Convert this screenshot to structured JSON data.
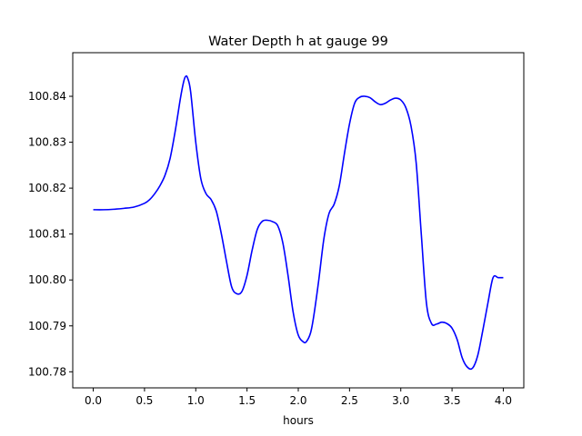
{
  "chart_data": {
    "type": "line",
    "title": "Water Depth h at gauge 99",
    "xlabel": "hours",
    "ylabel": "",
    "xlim": [
      -0.2,
      4.2
    ],
    "ylim": [
      100.7765,
      100.8495
    ],
    "xticks": [
      0.0,
      0.5,
      1.0,
      1.5,
      2.0,
      2.5,
      3.0,
      3.5,
      4.0
    ],
    "xtick_labels": [
      "0.0",
      "0.5",
      "1.0",
      "1.5",
      "2.0",
      "2.5",
      "3.0",
      "3.5",
      "4.0"
    ],
    "yticks": [
      100.78,
      100.79,
      100.8,
      100.81,
      100.82,
      100.83,
      100.84
    ],
    "ytick_labels": [
      "100.78",
      "100.79",
      "100.80",
      "100.81",
      "100.82",
      "100.83",
      "100.84"
    ],
    "grid": false,
    "colors": {
      "line": "#0000ff",
      "axes": "#000000",
      "background": "#ffffff"
    },
    "series": [
      {
        "x": [
          0.0,
          0.1,
          0.2,
          0.3,
          0.4,
          0.5,
          0.55,
          0.6,
          0.65,
          0.7,
          0.75,
          0.8,
          0.85,
          0.88,
          0.9,
          0.92,
          0.95,
          1.0,
          1.05,
          1.1,
          1.15,
          1.2,
          1.25,
          1.3,
          1.35,
          1.4,
          1.45,
          1.5,
          1.55,
          1.6,
          1.65,
          1.7,
          1.75,
          1.8,
          1.85,
          1.9,
          1.95,
          2.0,
          2.05,
          2.08,
          2.12,
          2.15,
          2.2,
          2.25,
          2.3,
          2.35,
          2.4,
          2.45,
          2.5,
          2.55,
          2.6,
          2.65,
          2.7,
          2.75,
          2.8,
          2.85,
          2.9,
          2.95,
          3.0,
          3.05,
          3.1,
          3.15,
          3.2,
          3.25,
          3.3,
          3.35,
          3.4,
          3.45,
          3.5,
          3.55,
          3.6,
          3.65,
          3.7,
          3.75,
          3.8,
          3.85,
          3.9,
          3.95,
          4.0
        ],
        "values": [
          100.8153,
          100.8153,
          100.8154,
          100.8156,
          100.8159,
          100.8167,
          100.8175,
          100.8188,
          100.8205,
          100.8228,
          100.8265,
          100.8325,
          100.8395,
          100.843,
          100.8443,
          100.844,
          100.841,
          100.83,
          100.822,
          100.8188,
          100.8175,
          100.815,
          100.81,
          100.804,
          100.7985,
          100.797,
          100.7975,
          100.801,
          100.8065,
          100.811,
          100.8128,
          100.813,
          100.8127,
          100.8118,
          100.808,
          100.801,
          100.793,
          100.788,
          100.7865,
          100.7866,
          100.7885,
          100.792,
          100.8,
          100.809,
          100.8145,
          100.8165,
          100.8205,
          100.8275,
          100.834,
          100.8385,
          100.8398,
          100.84,
          100.8397,
          100.8388,
          100.8382,
          100.8385,
          100.8392,
          100.8396,
          100.8392,
          100.8375,
          100.8335,
          100.8255,
          100.81,
          100.795,
          100.7905,
          100.7904,
          100.7908,
          100.7905,
          100.7895,
          100.787,
          100.783,
          100.781,
          100.7808,
          100.7835,
          100.789,
          100.795,
          100.8005,
          100.8005,
          100.8005
        ]
      }
    ]
  }
}
